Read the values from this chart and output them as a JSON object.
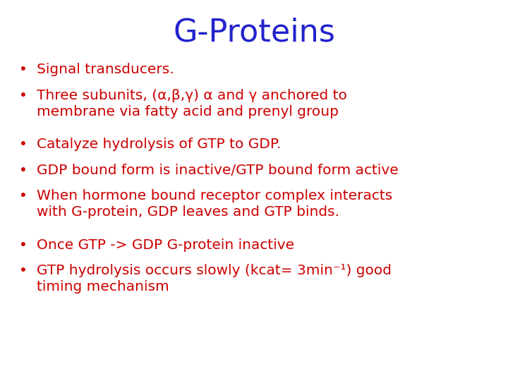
{
  "title": "G-Proteins",
  "title_color": "#2222CC",
  "title_fontsize": 32,
  "title_font": "Comic Sans MS",
  "bullet_color": "#CC0000",
  "bullet_fontsize": 14.5,
  "bullet_font": "Comic Sans MS",
  "background_color": "#FFFFFF",
  "bullets": [
    "Signal transducers.",
    "Three subunits, (α,β,γ) α and γ anchored to\nmembrane via fatty acid and prenyl group",
    "Catalyze hydrolysis of GTP to GDP.",
    "GDP bound form is inactive/GTP bound form active",
    "When hormone bound receptor complex interacts\nwith G-protein, GDP leaves and GTP binds.",
    "Once GTP -> GDP G-protein inactive",
    "GTP hydrolysis occurs slowly (kcat= 3min⁻¹) good\ntiming mechanism"
  ],
  "line_counts": [
    1,
    2,
    1,
    1,
    2,
    1,
    2
  ]
}
